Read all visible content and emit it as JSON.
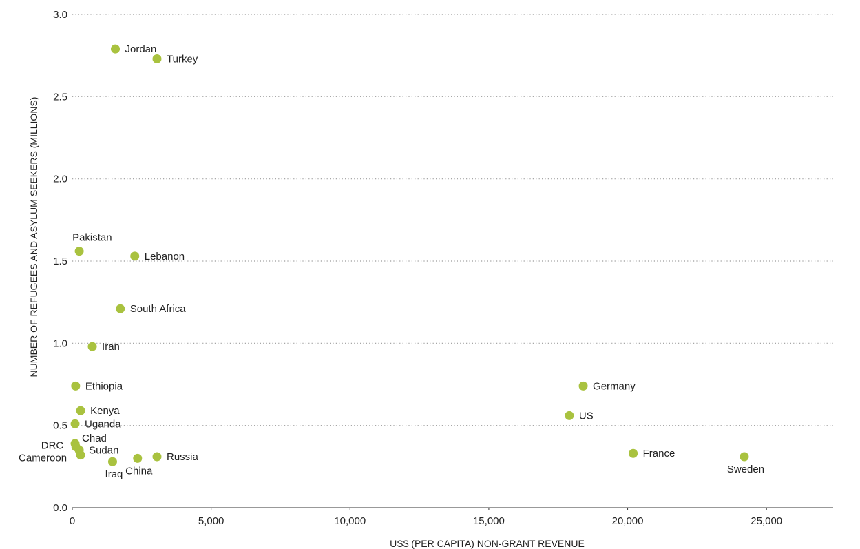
{
  "chart_data": {
    "type": "scatter",
    "title": "",
    "xlabel": "US$ (PER CAPITA) NON-GRANT REVENUE",
    "ylabel": "NUMBER OF REFUGEES AND ASYLUM SEEKERS (MILLIONS)",
    "xlim": [
      0,
      27400
    ],
    "ylim": [
      0,
      3.0
    ],
    "x_ticks": [
      0,
      5000,
      10000,
      15000,
      20000,
      25000
    ],
    "x_tick_labels": [
      "0",
      "5,000",
      "10,000",
      "15,000",
      "20,000",
      "25,000"
    ],
    "y_ticks": [
      0,
      0.5,
      1.0,
      1.5,
      2.0,
      2.5,
      3.0
    ],
    "y_tick_labels": [
      "0.0",
      "0.5",
      "1.0",
      "1.5",
      "2.0",
      "2.5",
      "3.0"
    ],
    "grid": "horizontal dotted",
    "point_color": "#a9c23f",
    "points": [
      {
        "label": "Jordan",
        "x": 1550,
        "y": 2.79,
        "pos": "right"
      },
      {
        "label": "Turkey",
        "x": 3050,
        "y": 2.73,
        "pos": "right"
      },
      {
        "label": "Pakistan",
        "x": 250,
        "y": 1.56,
        "pos": "above"
      },
      {
        "label": "Lebanon",
        "x": 2250,
        "y": 1.53,
        "pos": "right"
      },
      {
        "label": "South Africa",
        "x": 1730,
        "y": 1.21,
        "pos": "right"
      },
      {
        "label": "Iran",
        "x": 720,
        "y": 0.98,
        "pos": "right"
      },
      {
        "label": "Ethiopia",
        "x": 120,
        "y": 0.74,
        "pos": "right"
      },
      {
        "label": "Kenya",
        "x": 300,
        "y": 0.59,
        "pos": "right"
      },
      {
        "label": "Uganda",
        "x": 100,
        "y": 0.51,
        "pos": "right"
      },
      {
        "label": "Chad",
        "x": 100,
        "y": 0.39,
        "pos": "right-up"
      },
      {
        "label": "DRC",
        "x": 130,
        "y": 0.37,
        "pos": "left"
      },
      {
        "label": "Sudan",
        "x": 250,
        "y": 0.35,
        "pos": "right-down"
      },
      {
        "label": "Cameroon",
        "x": 300,
        "y": 0.32,
        "pos": "left-down"
      },
      {
        "label": "Iraq",
        "x": 1450,
        "y": 0.28,
        "pos": "below"
      },
      {
        "label": "China",
        "x": 2350,
        "y": 0.3,
        "pos": "below"
      },
      {
        "label": "Russia",
        "x": 3050,
        "y": 0.31,
        "pos": "right"
      },
      {
        "label": "Germany",
        "x": 18400,
        "y": 0.74,
        "pos": "right"
      },
      {
        "label": "US",
        "x": 17900,
        "y": 0.56,
        "pos": "right"
      },
      {
        "label": "France",
        "x": 20200,
        "y": 0.33,
        "pos": "right"
      },
      {
        "label": "Sweden",
        "x": 24200,
        "y": 0.31,
        "pos": "below"
      }
    ]
  }
}
